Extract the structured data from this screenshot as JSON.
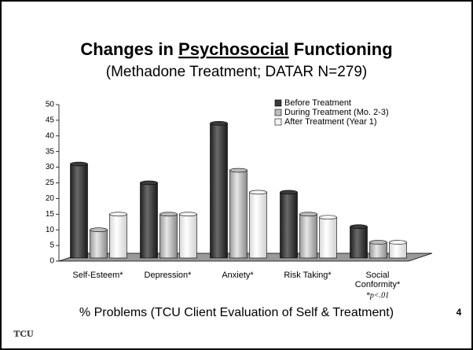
{
  "chart_data": {
    "type": "bar",
    "title": [
      "Changes in ",
      "Psychosocial",
      " Functioning"
    ],
    "subtitle": "(Methadone Treatment; DATAR N=279)",
    "categories": [
      "Self-Esteem*",
      "Depression*",
      "Anxiety*",
      "Risk Taking*",
      "Social Conformity*"
    ],
    "series": [
      {
        "name": "Before Treatment",
        "color": "#3a3a3a",
        "values": [
          30,
          24,
          43,
          21,
          10
        ]
      },
      {
        "name": "During Treatment (Mo. 2-3)",
        "color": "#bdbdbd",
        "values": [
          9,
          14,
          28,
          14,
          5
        ]
      },
      {
        "name": "After Treatment (Year 1)",
        "color": "#f4f4f4",
        "values": [
          14,
          14,
          21,
          13,
          5
        ]
      }
    ],
    "ylim": [
      0,
      50
    ],
    "yticks": [
      0,
      5,
      10,
      15,
      20,
      25,
      30,
      35,
      40,
      45,
      50
    ],
    "note": "*p<.01",
    "x_label": "% Problems (TCU Client Evaluation of Self & Treatment)",
    "page_number": "4",
    "logo": "TCU",
    "legend": "upper right"
  }
}
